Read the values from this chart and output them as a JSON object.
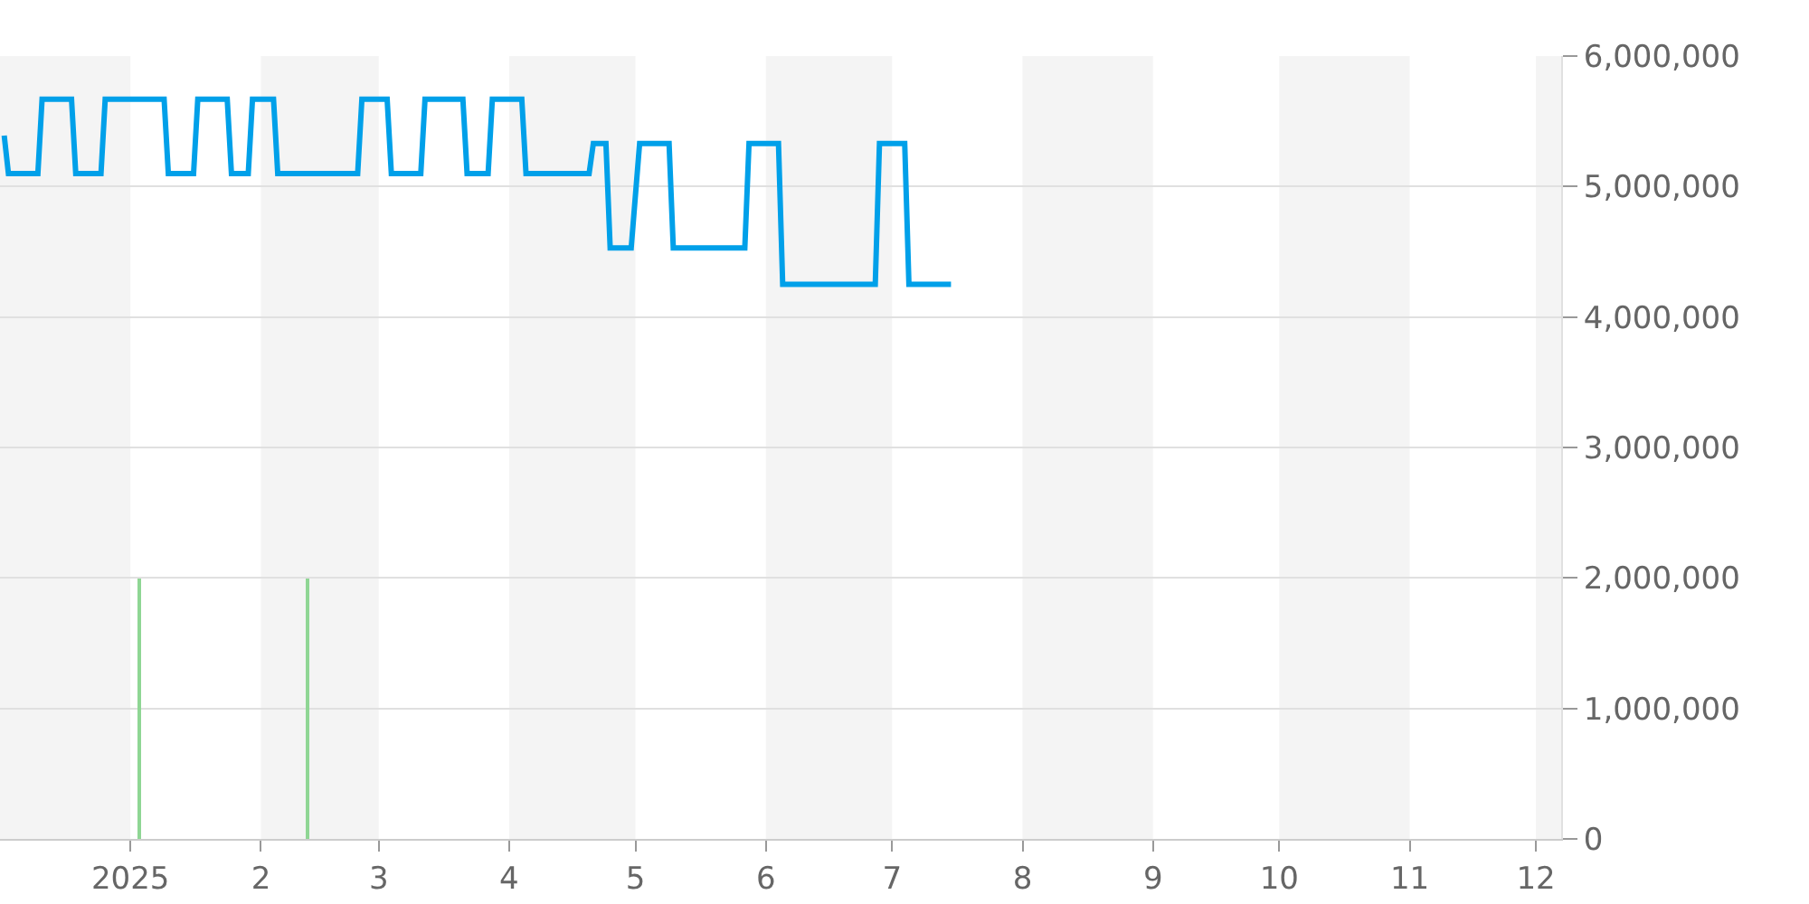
{
  "chart_data": {
    "type": "line",
    "xlim": [
      "2024-12-01",
      "2025-12-07"
    ],
    "xticks": [
      {
        "value": "2025-01-01",
        "label": "2025"
      },
      {
        "value": "2025-02-01",
        "label": "2"
      },
      {
        "value": "2025-03-01",
        "label": "3"
      },
      {
        "value": "2025-04-01",
        "label": "4"
      },
      {
        "value": "2025-05-01",
        "label": "5"
      },
      {
        "value": "2025-06-01",
        "label": "6"
      },
      {
        "value": "2025-07-01",
        "label": "7"
      },
      {
        "value": "2025-08-01",
        "label": "8"
      },
      {
        "value": "2025-09-01",
        "label": "9"
      },
      {
        "value": "2025-10-01",
        "label": "10"
      },
      {
        "value": "2025-11-01",
        "label": "11"
      },
      {
        "value": "2025-12-01",
        "label": "12"
      }
    ],
    "ylim": [
      0,
      6000000
    ],
    "yticks": [
      0,
      {
        "value": 1000000,
        "label": "1,000,000"
      },
      {
        "value": 2000000,
        "label": "2,000,000"
      },
      {
        "value": 3000000,
        "label": "3,000,000"
      },
      {
        "value": 4000000,
        "label": "4,000,000"
      },
      {
        "value": 5000000,
        "label": "5,000,000"
      },
      {
        "value": 6000000,
        "label": "6,000,000"
      }
    ],
    "grid": "y",
    "series": [
      {
        "color": "#00a0e9",
        "x": [
          "2024-12-02",
          "2024-12-03",
          "2024-12-10",
          "2024-12-11",
          "2024-12-18",
          "2024-12-19",
          "2024-12-25",
          "2024-12-26",
          "2025-01-09",
          "2025-01-10",
          "2025-01-16",
          "2025-01-17",
          "2025-01-24",
          "2025-01-25",
          "2025-01-29",
          "2025-01-30",
          "2025-02-04",
          "2025-02-05",
          "2025-02-24",
          "2025-02-25",
          "2025-03-03",
          "2025-03-04",
          "2025-03-11",
          "2025-03-12",
          "2025-03-21",
          "2025-03-22",
          "2025-03-27",
          "2025-03-28",
          "2025-04-04",
          "2025-04-05",
          "2025-04-20",
          "2025-04-21",
          "2025-04-24",
          "2025-04-25",
          "2025-04-30",
          "2025-05-02",
          "2025-05-09",
          "2025-05-10",
          "2025-05-27",
          "2025-05-28",
          "2025-06-04",
          "2025-06-05",
          "2025-06-27",
          "2025-06-28",
          "2025-07-04",
          "2025-07-05",
          "2025-07-15"
        ],
        "values": [
          5390000,
          5100000,
          5100000,
          5670000,
          5670000,
          5100000,
          5100000,
          5670000,
          5670000,
          5100000,
          5100000,
          5670000,
          5670000,
          5100000,
          5100000,
          5670000,
          5670000,
          5100000,
          5100000,
          5670000,
          5670000,
          5100000,
          5100000,
          5670000,
          5670000,
          5100000,
          5100000,
          5670000,
          5670000,
          5100000,
          5100000,
          5330000,
          5330000,
          4530000,
          4530000,
          5330000,
          5330000,
          4530000,
          4530000,
          5330000,
          5330000,
          4250000,
          4250000,
          5330000,
          5330000,
          4250000,
          4250000
        ]
      },
      {
        "type": "bar",
        "color": "#8fd694",
        "x": [
          "2025-01-03",
          "2025-02-12"
        ],
        "values": [
          2000000,
          2000000
        ]
      }
    ],
    "bands": [
      {
        "axis": "x",
        "from": "2024-12-01",
        "to": "2025-01-01",
        "color": "#f4f4f4"
      },
      {
        "axis": "x",
        "from": "2025-02-01",
        "to": "2025-03-01",
        "color": "#f4f4f4"
      },
      {
        "axis": "x",
        "from": "2025-04-01",
        "to": "2025-05-01",
        "color": "#f4f4f4"
      },
      {
        "axis": "x",
        "from": "2025-06-01",
        "to": "2025-07-01",
        "color": "#f4f4f4"
      },
      {
        "axis": "x",
        "from": "2025-08-01",
        "to": "2025-09-01",
        "color": "#f4f4f4"
      },
      {
        "axis": "x",
        "from": "2025-10-01",
        "to": "2025-11-01",
        "color": "#f4f4f4"
      },
      {
        "axis": "x",
        "from": "2025-12-01",
        "to": "2025-12-07",
        "color": "#f4f4f4"
      }
    ]
  }
}
